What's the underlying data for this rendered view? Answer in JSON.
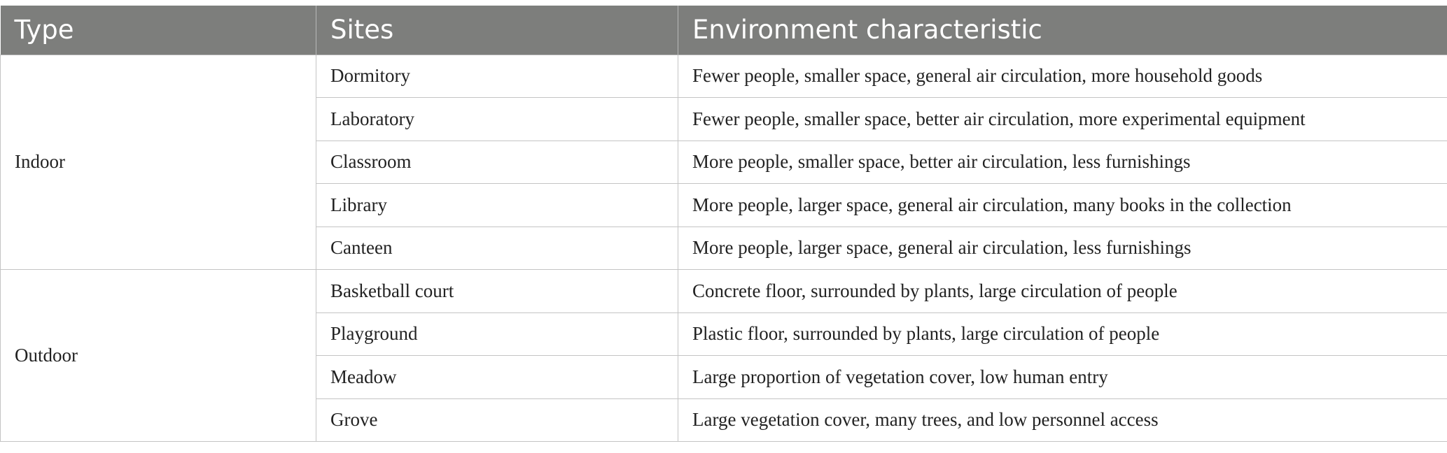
{
  "table": {
    "headers": [
      "Type",
      "Sites",
      "Environment characteristic"
    ],
    "groups": [
      {
        "type": "Indoor",
        "rows": [
          {
            "site": "Dormitory",
            "env": "Fewer people, smaller space, general air circulation, more household goods"
          },
          {
            "site": "Laboratory",
            "env": "Fewer people, smaller space, better air circulation, more experimental equipment"
          },
          {
            "site": "Classroom",
            "env": "More people, smaller space, better air circulation, less furnishings"
          },
          {
            "site": "Library",
            "env": "More people, larger space, general air circulation, many books in the collection"
          },
          {
            "site": "Canteen",
            "env": "More people, larger space, general air circulation, less furnishings"
          }
        ]
      },
      {
        "type": "Outdoor",
        "rows": [
          {
            "site": "Basketball court",
            "env": "Concrete floor, surrounded by plants, large circulation of people"
          },
          {
            "site": "Playground",
            "env": "Plastic floor, surrounded by plants, large circulation of people"
          },
          {
            "site": "Meadow",
            "env": "Large proportion of vegetation cover, low human entry"
          },
          {
            "site": "Grove",
            "env": "Large vegetation cover, many trees, and low personnel access"
          }
        ]
      }
    ]
  }
}
